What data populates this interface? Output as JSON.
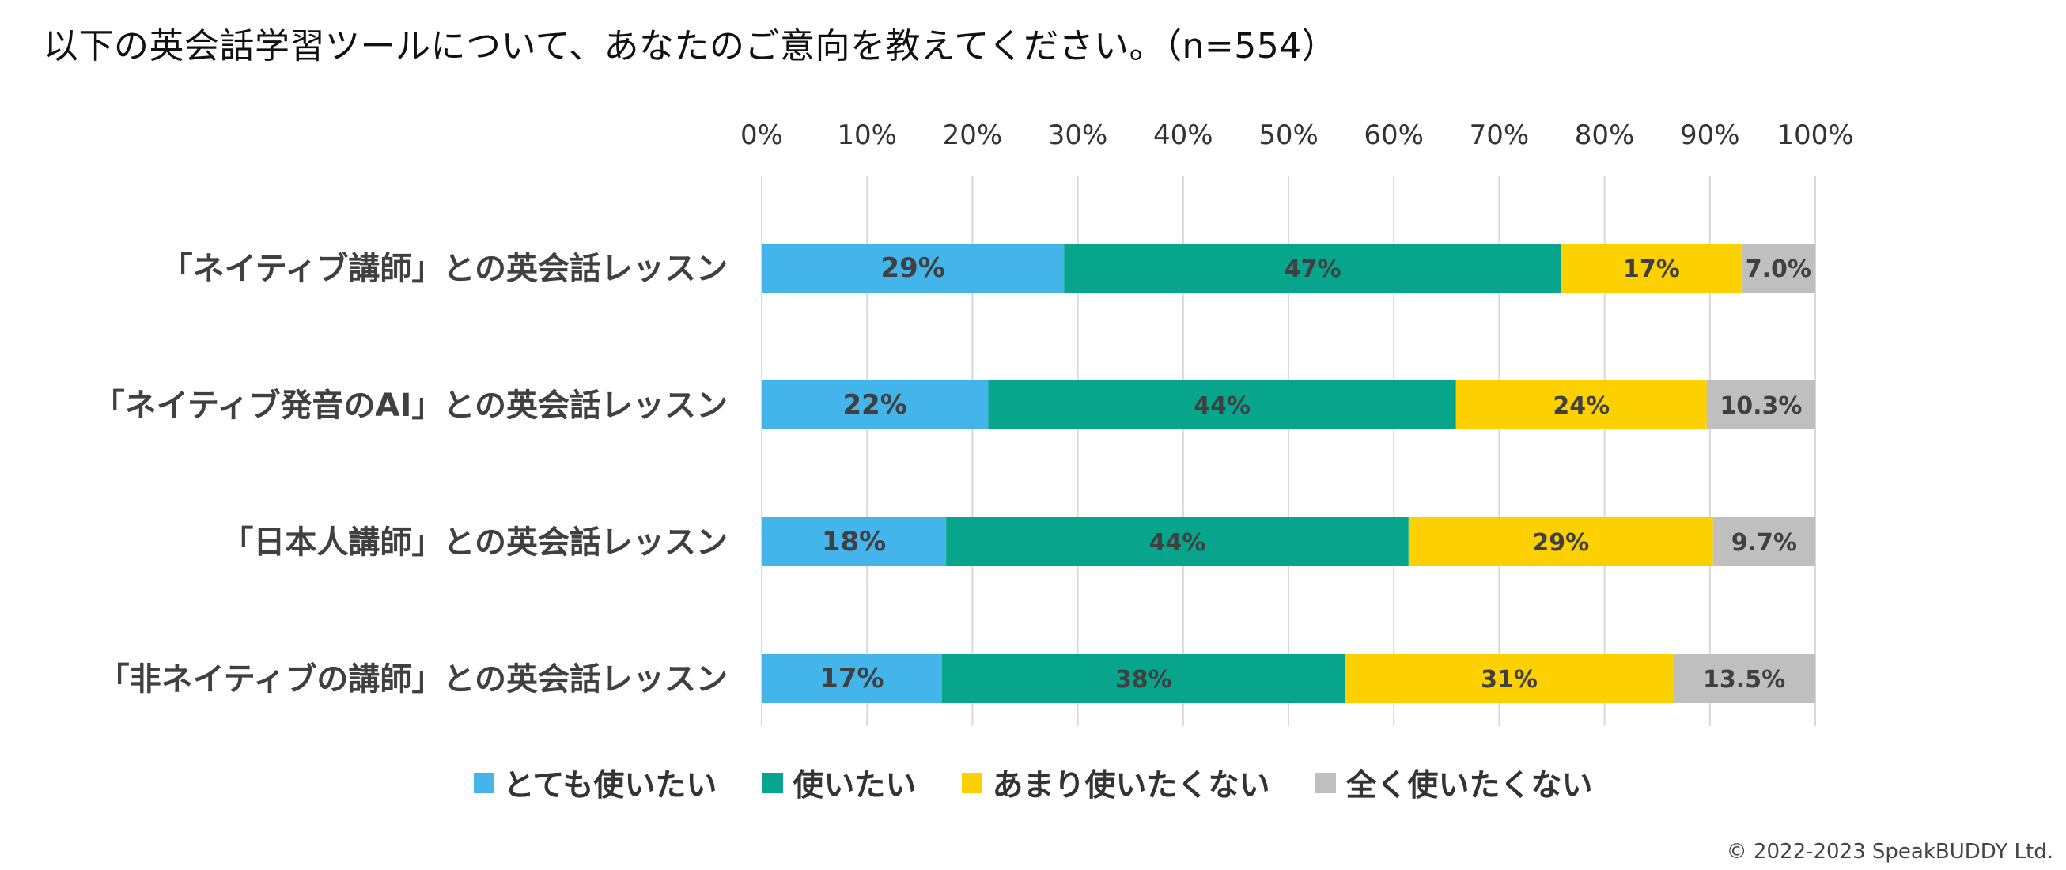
{
  "title": "以下の英会話学習ツールについて、あなたのご意向を教えてください。（n=554）",
  "copyright": "© 2022-2023 SpeakBUDDY Ltd.",
  "colors": {
    "very_want": "#43b5ea",
    "want": "#07a58b",
    "not_much": "#fdd000",
    "not_at_all": "#bfbfbf",
    "gridline": "#d9d9d9",
    "label_text": "#404040"
  },
  "chart_data": {
    "type": "bar",
    "orientation": "horizontal",
    "stacked": true,
    "title": "以下の英会話学習ツールについて、あなたのご意向を教えてください。（n=554）",
    "xlabel": "",
    "ylabel": "",
    "xlim": [
      0,
      100
    ],
    "x_ticks": [
      "0%",
      "10%",
      "20%",
      "30%",
      "40%",
      "50%",
      "60%",
      "70%",
      "80%",
      "90%",
      "100%"
    ],
    "grid": true,
    "legend_position": "bottom",
    "categories": [
      "「ネイティブ講師」との英会話レッスン",
      "「ネイティブ発音のAI」との英会話レッスン",
      "「日本人講師」との英会話レッスン",
      "「非ネイティブの講師」との英会話レッスン"
    ],
    "series": [
      {
        "name": "とても使いたい",
        "color": "#43b5ea",
        "values": [
          28.7,
          21.5,
          17.5,
          17.1
        ],
        "labels": [
          "29%",
          "22%",
          "18%",
          "17%"
        ]
      },
      {
        "name": "使いたい",
        "color": "#07a58b",
        "values": [
          47.2,
          44.4,
          43.9,
          38.3
        ],
        "labels": [
          "47%",
          "44%",
          "44%",
          "38%"
        ]
      },
      {
        "name": "あまり使いたくない",
        "color": "#fdd000",
        "values": [
          17.1,
          23.8,
          28.9,
          31.1
        ],
        "labels": [
          "17%",
          "24%",
          "29%",
          "31%"
        ]
      },
      {
        "name": "全く使いたくない",
        "color": "#bfbfbf",
        "values": [
          7.0,
          10.3,
          9.7,
          13.5
        ],
        "labels": [
          "7.0%",
          "10.3%",
          "9.7%",
          "13.5%"
        ]
      }
    ]
  }
}
